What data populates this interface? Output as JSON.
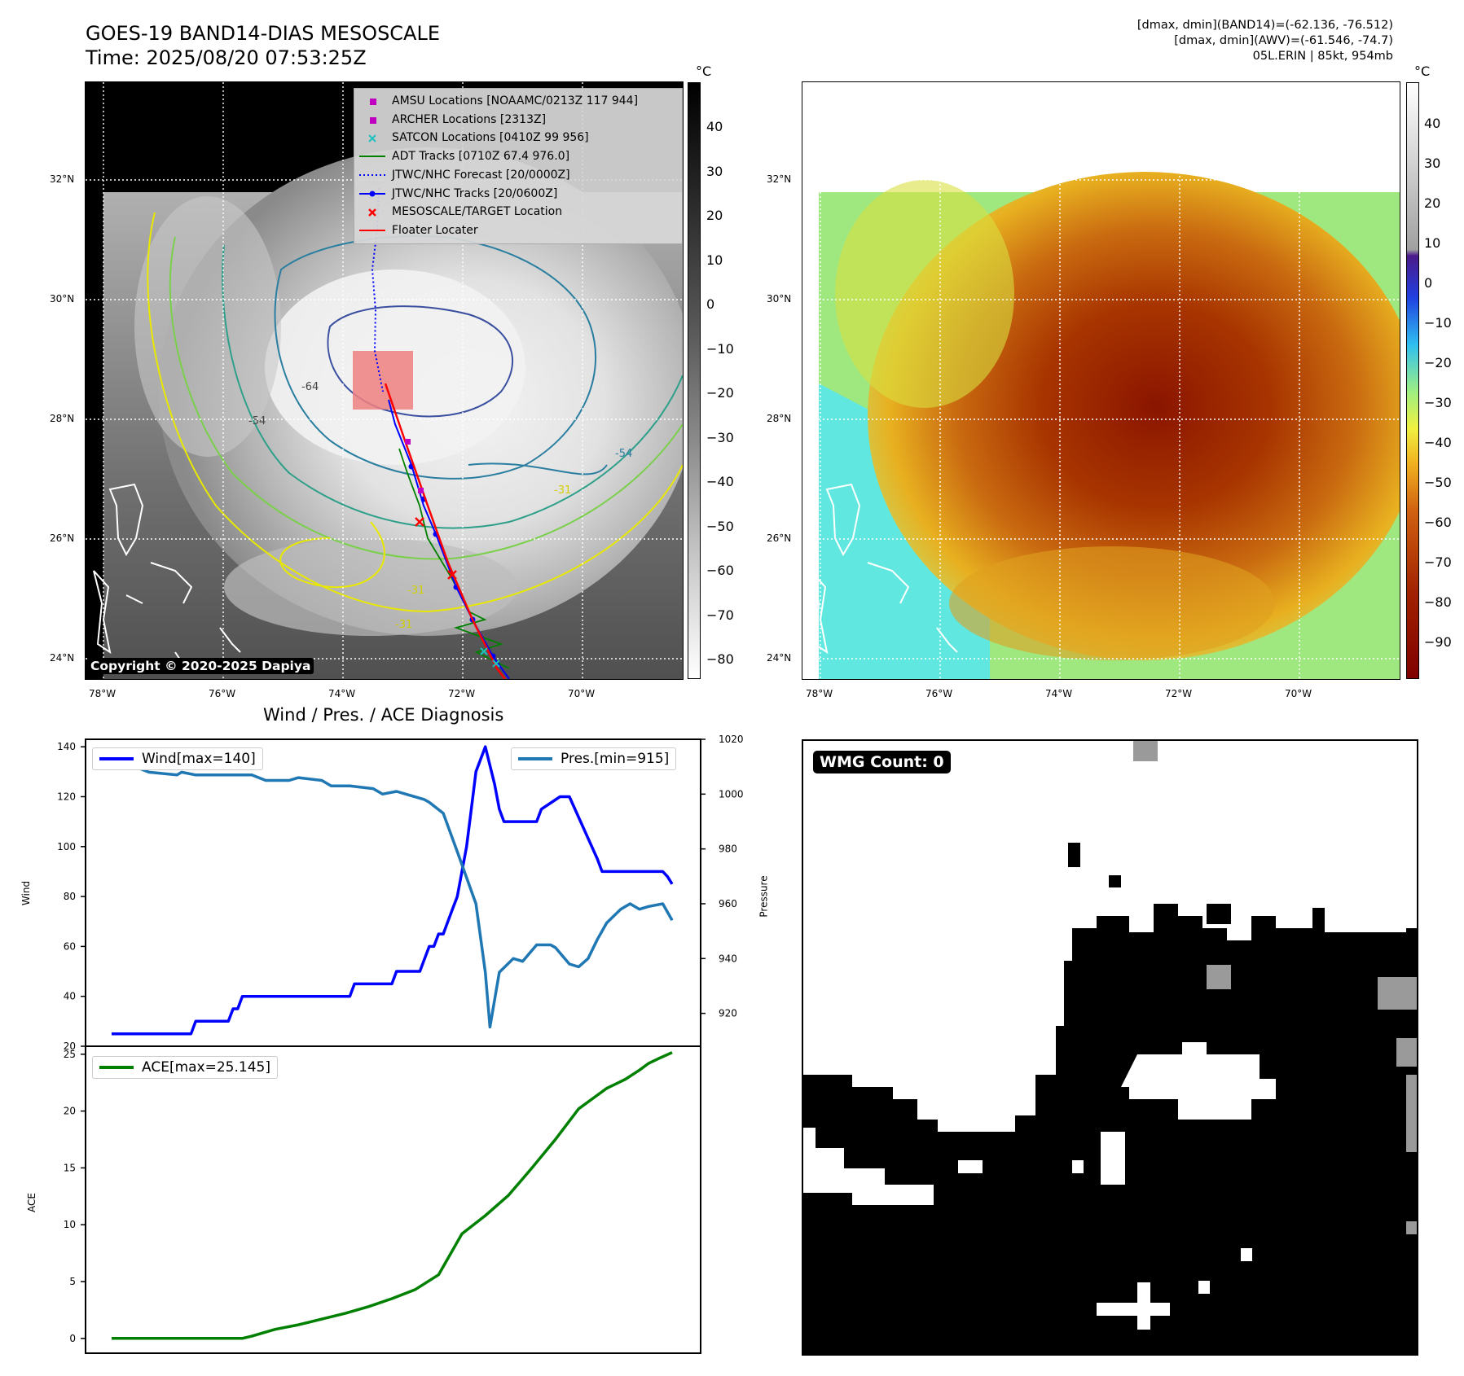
{
  "header": {
    "title_line1": "GOES-19 BAND14-DIAS MESOSCALE",
    "title_line2": "Time: 2025/08/20 07:53:25Z",
    "right_line1": "[dmax, dmin](BAND14)=(-62.136, -76.512)",
    "right_line2": "[dmax, dmin](AWV)=(-61.546, -74.7)",
    "right_line3": "05L.ERIN | 85kt, 954mb"
  },
  "map_axes": {
    "lat_labels": [
      "32°N",
      "30°N",
      "28°N",
      "26°N",
      "24°N"
    ],
    "lon_labels": [
      "78°W",
      "76°W",
      "74°W",
      "72°W",
      "70°W"
    ]
  },
  "ir_panel": {
    "copyright": "Copyright © 2020-2025 Dapiya",
    "colorbar_unit": "°C",
    "colorbar_ticks": [
      "40",
      "30",
      "20",
      "10",
      "0",
      "−10",
      "−20",
      "−30",
      "−40",
      "−50",
      "−60",
      "−70",
      "−80"
    ],
    "contour_labels": [
      "-64",
      "-54",
      "-54",
      "-31",
      "-31",
      "-31"
    ],
    "legend": [
      {
        "label": "AMSU Locations [NOAAMC/0213Z 117 944]",
        "color": "#c000c0",
        "marker": "square"
      },
      {
        "label": "ARCHER Locations [2313Z]",
        "color": "#c000c0",
        "marker": "square"
      },
      {
        "label": "SATCON Locations [0410Z 99 956]",
        "color": "#20c0c0",
        "marker": "x"
      },
      {
        "label": "ADT Tracks [0710Z 67.4 976.0]",
        "color": "#008000",
        "marker": "line"
      },
      {
        "label": "JTWC/NHC Forecast [20/0000Z]",
        "color": "#0000ff",
        "marker": "dotted"
      },
      {
        "label": "JTWC/NHC Tracks [20/0600Z]",
        "color": "#0000ff",
        "marker": "line-dot"
      },
      {
        "label": "MESOSCALE/TARGET Location",
        "color": "#ff0000",
        "marker": "x"
      },
      {
        "label": "Floater Locater",
        "color": "#ff0000",
        "marker": "line"
      }
    ]
  },
  "wv_panel": {
    "colorbar_unit": "°C",
    "colorbar_ticks": [
      "40",
      "30",
      "20",
      "10",
      "0",
      "−10",
      "−20",
      "−30",
      "−40",
      "−50",
      "−60",
      "−70",
      "−80",
      "−90"
    ]
  },
  "wmg_panel": {
    "label": "WMG Count: 0"
  },
  "chart_data": [
    {
      "type": "line",
      "title": "Wind / Pres. / ACE Diagnosis",
      "xlabel": "",
      "ylabel": "Wind",
      "ylabel_right": "Pressure",
      "ylim": [
        20,
        143
      ],
      "ylim_right": [
        908,
        1020
      ],
      "yticks": [
        20,
        40,
        60,
        80,
        100,
        120,
        140
      ],
      "yticks_right": [
        920,
        940,
        960,
        980,
        1000,
        1020
      ],
      "x": [
        0,
        1,
        2,
        3,
        4,
        5,
        6,
        7,
        8,
        9,
        10,
        11,
        12,
        13,
        14,
        15,
        16,
        17,
        18,
        19,
        20,
        21,
        22,
        23,
        24,
        25,
        26,
        27,
        28,
        29,
        30,
        31,
        32,
        33,
        34,
        35,
        36,
        37,
        38,
        39,
        40,
        41,
        42,
        43,
        44,
        45,
        46,
        47,
        48,
        49,
        50,
        51,
        52,
        53,
        54,
        55,
        56,
        57,
        58,
        59,
        60,
        61,
        62,
        63,
        64,
        65,
        66,
        67,
        68,
        69,
        70,
        71,
        72,
        73,
        74,
        75,
        76,
        77,
        78,
        79,
        80,
        81,
        82,
        83,
        84,
        85,
        86,
        87,
        88,
        89,
        90,
        91,
        92,
        93,
        94,
        95,
        96,
        97,
        98,
        99,
        100,
        101,
        102,
        103,
        104,
        105,
        106,
        107,
        108,
        109,
        110,
        111,
        112,
        113,
        114,
        115,
        116,
        117,
        118,
        119,
        120
      ],
      "series": [
        {
          "name": "Wind[max=140]",
          "axis": "left",
          "color": "#0000ff",
          "x": [
            0,
            17,
            18,
            25,
            26,
            27,
            28,
            32,
            33,
            50,
            51,
            52,
            53,
            59,
            60,
            61,
            65,
            66,
            67,
            68,
            69,
            70,
            71,
            72,
            73,
            74,
            75,
            76,
            77,
            78,
            80,
            82,
            83,
            84,
            90,
            91,
            92,
            96,
            97,
            98,
            104,
            105,
            106,
            110,
            111,
            114,
            115,
            118,
            119,
            120
          ],
          "values": [
            25,
            25,
            30,
            30,
            35,
            35,
            40,
            40,
            40,
            40,
            40,
            45,
            45,
            45,
            45,
            50,
            50,
            50,
            55,
            60,
            60,
            65,
            65,
            70,
            75,
            80,
            90,
            100,
            115,
            130,
            140,
            125,
            115,
            110,
            110,
            110,
            115,
            120,
            120,
            120,
            95,
            90,
            90,
            90,
            90,
            90,
            90,
            90,
            88,
            85
          ]
        },
        {
          "name": "Pres.[min=915]",
          "axis": "right",
          "color": "#1f77b4",
          "x": [
            0,
            2,
            5,
            8,
            14,
            15,
            18,
            23,
            26,
            30,
            33,
            38,
            40,
            45,
            47,
            51,
            56,
            58,
            61,
            65,
            67,
            68,
            71,
            74,
            78,
            80,
            81,
            83,
            86,
            88,
            91,
            94,
            95,
            98,
            100,
            102,
            104,
            106,
            109,
            111,
            113,
            115,
            118,
            120
          ],
          "values": [
            1015,
            1015,
            1010,
            1008,
            1007,
            1008,
            1007,
            1007,
            1007,
            1007,
            1005,
            1005,
            1006,
            1005,
            1003,
            1003,
            1002,
            1000,
            1001,
            999,
            998,
            997,
            993,
            979,
            960,
            935,
            915,
            935,
            940,
            939,
            945,
            945,
            944,
            938,
            937,
            940,
            947,
            953,
            958,
            960,
            958,
            959,
            960,
            954
          ]
        }
      ]
    },
    {
      "type": "line",
      "title": "",
      "xlabel": "",
      "ylabel": "ACE",
      "ylim": [
        -1.3,
        25.7
      ],
      "yticks": [
        0,
        5,
        10,
        15,
        20,
        25
      ],
      "series": [
        {
          "name": "ACE[max=25.145]",
          "color": "#008000",
          "x": [
            0,
            5,
            10,
            15,
            20,
            25,
            28,
            30,
            35,
            40,
            45,
            50,
            55,
            60,
            65,
            70,
            75,
            80,
            85,
            90,
            95,
            100,
            104,
            106,
            110,
            113,
            115,
            117,
            120
          ],
          "values": [
            0,
            0,
            0,
            0,
            0,
            0,
            0,
            0.2,
            0.8,
            1.2,
            1.7,
            2.2,
            2.8,
            3.5,
            4.3,
            5.6,
            9.2,
            10.8,
            12.6,
            15.0,
            17.5,
            20.2,
            21.4,
            22.0,
            22.8,
            23.6,
            24.2,
            24.6,
            25.145
          ]
        }
      ]
    }
  ]
}
